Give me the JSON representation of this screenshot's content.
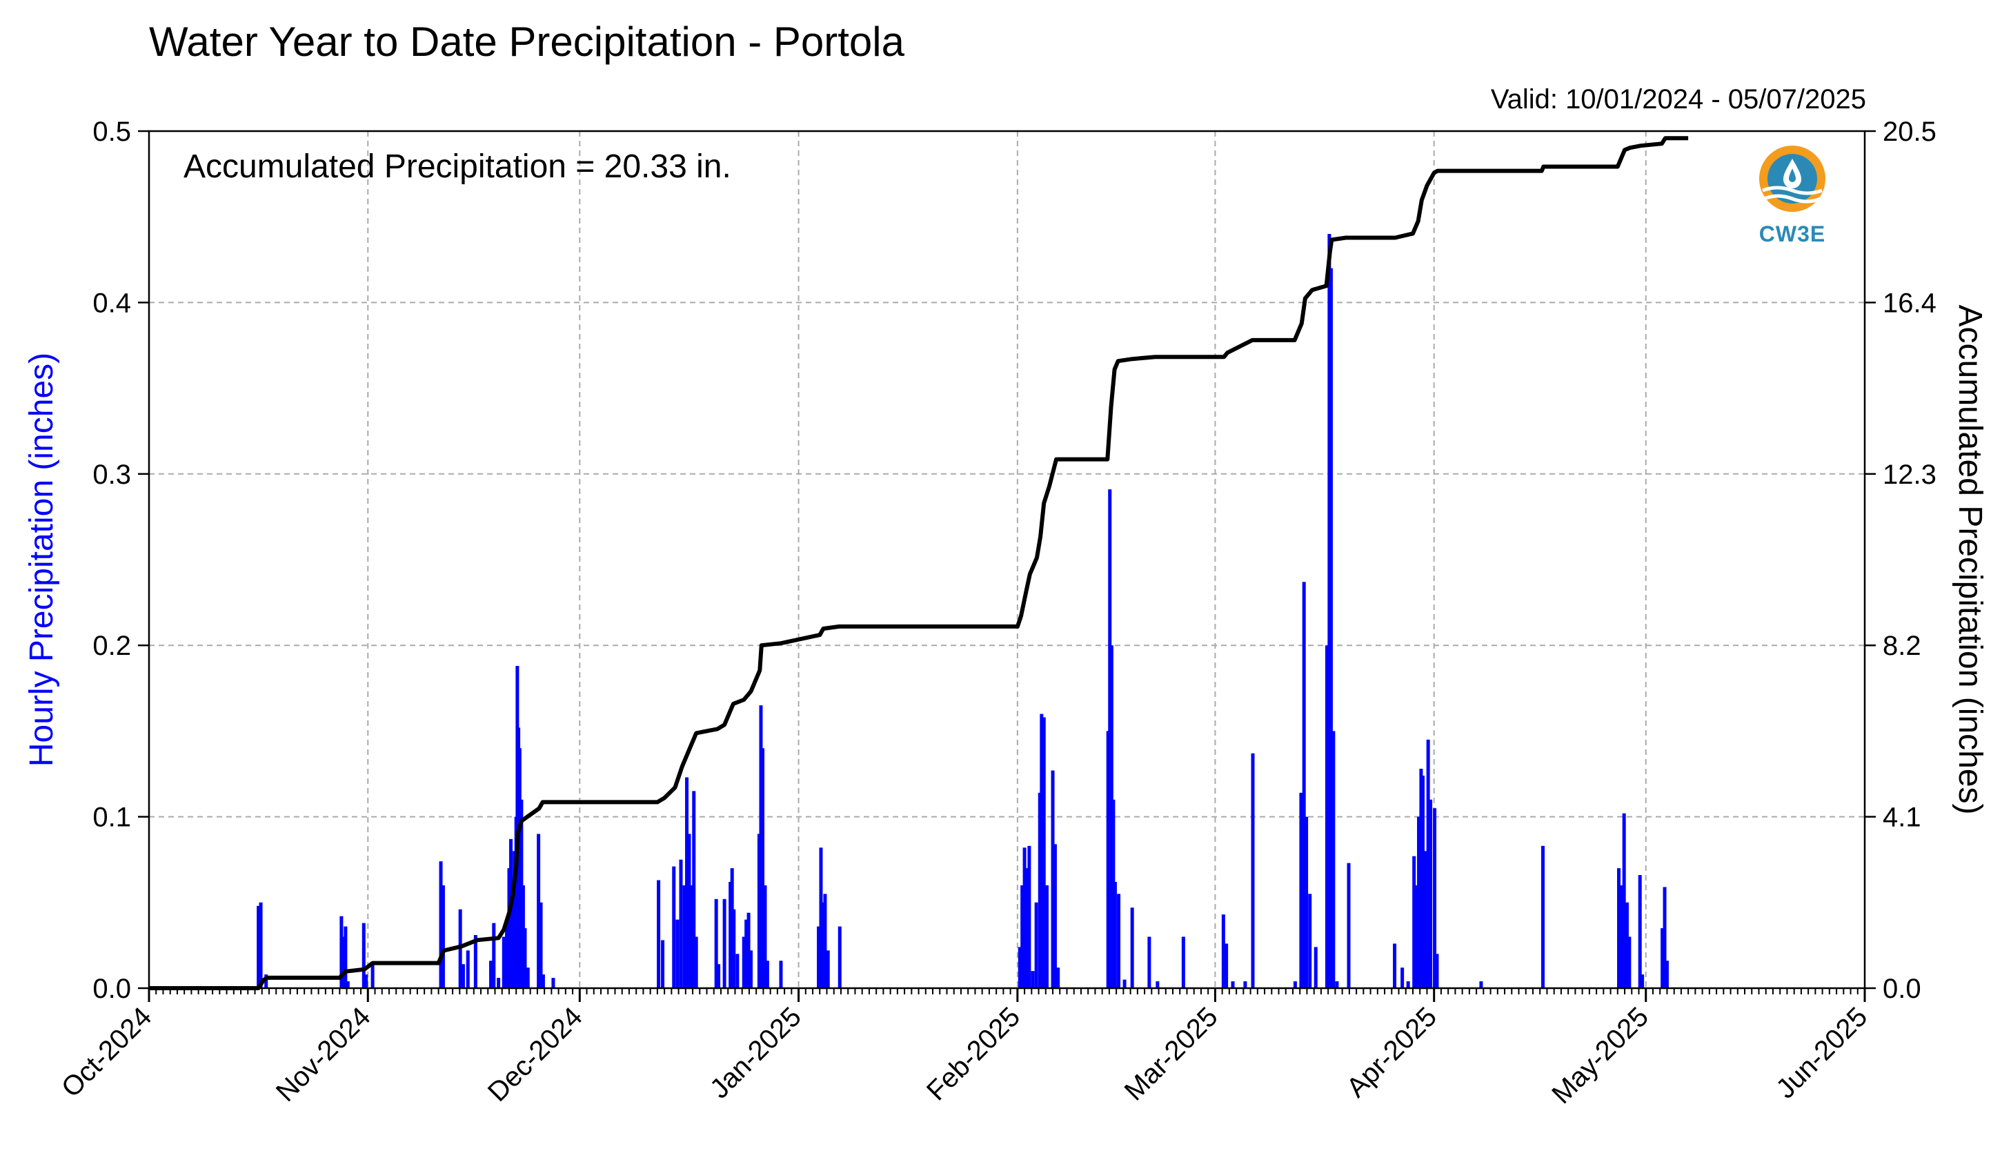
{
  "title": "Water Year to Date Precipitation - Portola",
  "valid": "Valid: 10/01/2024 - 05/07/2025",
  "annotation": "Accumulated Precipitation = 20.33 in.",
  "logo_text": "CW3E",
  "colors": {
    "bars": "#0000ff",
    "accumulation": "#000000",
    "ylabel_left": "#0000ff",
    "grid": "#aaaaaa",
    "logo_orange": "#f39c1e",
    "logo_blue": "#2a8ab5"
  },
  "chart_data": {
    "type": "bar",
    "title": "Water Year to Date Precipitation - Portola",
    "ylabel": "Hourly Precipitation (inches)",
    "ylabel_right": "Accumulated Precipitation (inches)",
    "xlim": [
      "2024-10-01",
      "2025-06-01"
    ],
    "ylim": [
      0,
      0.5
    ],
    "ylim_right": [
      0,
      20.5
    ],
    "y_ticks": [
      "0.0",
      "0.1",
      "0.2",
      "0.3",
      "0.4",
      "0.5"
    ],
    "y_ticks_right": [
      "0.0",
      "4.1",
      "8.2",
      "12.3",
      "16.4",
      "20.5"
    ],
    "x_ticks": [
      {
        "date": "2024-10-01",
        "label": "Oct-2024"
      },
      {
        "date": "2024-11-01",
        "label": "Nov-2024"
      },
      {
        "date": "2024-12-01",
        "label": "Dec-2024"
      },
      {
        "date": "2025-01-01",
        "label": "Jan-2025"
      },
      {
        "date": "2025-02-01",
        "label": "Feb-2025"
      },
      {
        "date": "2025-03-01",
        "label": "Mar-2025"
      },
      {
        "date": "2025-04-01",
        "label": "Apr-2025"
      },
      {
        "date": "2025-05-01",
        "label": "May-2025"
      },
      {
        "date": "2025-06-01",
        "label": "Jun-2025"
      }
    ],
    "grid": true,
    "series": [
      {
        "name": "Hourly Precipitation",
        "type": "bar",
        "points": [
          [
            "2024-10-16T12",
            0.048
          ],
          [
            "2024-10-16T20",
            0.05
          ],
          [
            "2024-10-17T14",
            0.008
          ],
          [
            "2024-10-28T06",
            0.042
          ],
          [
            "2024-10-28T12",
            0.03
          ],
          [
            "2024-10-28T20",
            0.036
          ],
          [
            "2024-10-29T04",
            0.004
          ],
          [
            "2024-10-31T10",
            0.038
          ],
          [
            "2024-10-31T18",
            0.008
          ],
          [
            "2024-11-01T16",
            0.014
          ],
          [
            "2024-11-11T08",
            0.074
          ],
          [
            "2024-11-11T16",
            0.06
          ],
          [
            "2024-11-14T02",
            0.046
          ],
          [
            "2024-11-14T12",
            0.014
          ],
          [
            "2024-11-15T04",
            0.022
          ],
          [
            "2024-11-16T06",
            0.031
          ],
          [
            "2024-11-18T10",
            0.016
          ],
          [
            "2024-11-18T20",
            0.038
          ],
          [
            "2024-11-19T12",
            0.006
          ],
          [
            "2024-11-20T06",
            0.03
          ],
          [
            "2024-11-20T16",
            0.04
          ],
          [
            "2024-11-21T00",
            0.07
          ],
          [
            "2024-11-21T06",
            0.087
          ],
          [
            "2024-11-21T12",
            0.06
          ],
          [
            "2024-11-21T18",
            0.08
          ],
          [
            "2024-11-22T00",
            0.1
          ],
          [
            "2024-11-22T04",
            0.188
          ],
          [
            "2024-11-22T08",
            0.152
          ],
          [
            "2024-11-22T12",
            0.14
          ],
          [
            "2024-11-22T18",
            0.11
          ],
          [
            "2024-11-23T00",
            0.06
          ],
          [
            "2024-11-23T06",
            0.035
          ],
          [
            "2024-11-23T16",
            0.012
          ],
          [
            "2024-11-25T04",
            0.09
          ],
          [
            "2024-11-25T12",
            0.05
          ],
          [
            "2024-11-25T20",
            0.008
          ],
          [
            "2024-11-27T06",
            0.006
          ],
          [
            "2024-12-12T04",
            0.063
          ],
          [
            "2024-12-12T18",
            0.028
          ],
          [
            "2024-12-14T08",
            0.071
          ],
          [
            "2024-12-14T20",
            0.04
          ],
          [
            "2024-12-15T08",
            0.075
          ],
          [
            "2024-12-15T20",
            0.06
          ],
          [
            "2024-12-16T04",
            0.123
          ],
          [
            "2024-12-16T12",
            0.09
          ],
          [
            "2024-12-16T20",
            0.06
          ],
          [
            "2024-12-17T04",
            0.115
          ],
          [
            "2024-12-17T12",
            0.03
          ],
          [
            "2024-12-20T08",
            0.052
          ],
          [
            "2024-12-20T16",
            0.014
          ],
          [
            "2024-12-21T12",
            0.052
          ],
          [
            "2024-12-22T08",
            0.062
          ],
          [
            "2024-12-22T14",
            0.07
          ],
          [
            "2024-12-22T20",
            0.046
          ],
          [
            "2024-12-23T08",
            0.02
          ],
          [
            "2024-12-24T06",
            0.03
          ],
          [
            "2024-12-24T14",
            0.04
          ],
          [
            "2024-12-24T22",
            0.044
          ],
          [
            "2024-12-25T06",
            0.022
          ],
          [
            "2024-12-26T10",
            0.09
          ],
          [
            "2024-12-26T16",
            0.165
          ],
          [
            "2024-12-26T22",
            0.14
          ],
          [
            "2024-12-27T06",
            0.06
          ],
          [
            "2024-12-27T14",
            0.016
          ],
          [
            "2024-12-29T12",
            0.016
          ],
          [
            "2025-01-03T20",
            0.036
          ],
          [
            "2025-01-04T04",
            0.082
          ],
          [
            "2025-01-04T10",
            0.05
          ],
          [
            "2025-01-04T18",
            0.055
          ],
          [
            "2025-01-05T04",
            0.022
          ],
          [
            "2025-01-06T20",
            0.036
          ],
          [
            "2025-02-01T08",
            0.024
          ],
          [
            "2025-02-01T16",
            0.06
          ],
          [
            "2025-02-02T00",
            0.082
          ],
          [
            "2025-02-02T08",
            0.07
          ],
          [
            "2025-02-02T16",
            0.083
          ],
          [
            "2025-02-03T04",
            0.01
          ],
          [
            "2025-02-03T16",
            0.05
          ],
          [
            "2025-02-04T04",
            0.114
          ],
          [
            "2025-02-04T10",
            0.16
          ],
          [
            "2025-02-04T18",
            0.158
          ],
          [
            "2025-02-05T04",
            0.06
          ],
          [
            "2025-02-06T00",
            0.127
          ],
          [
            "2025-02-06T08",
            0.084
          ],
          [
            "2025-02-06T18",
            0.012
          ],
          [
            "2025-02-13T20",
            0.15
          ],
          [
            "2025-02-14T02",
            0.291
          ],
          [
            "2025-02-14T08",
            0.2
          ],
          [
            "2025-02-14T14",
            0.11
          ],
          [
            "2025-02-14T20",
            0.062
          ],
          [
            "2025-02-15T08",
            0.055
          ],
          [
            "2025-02-16T04",
            0.005
          ],
          [
            "2025-02-17T06",
            0.047
          ],
          [
            "2025-02-19T16",
            0.03
          ],
          [
            "2025-02-20T20",
            0.004
          ],
          [
            "2025-02-24T12",
            0.03
          ],
          [
            "2025-03-02T04",
            0.043
          ],
          [
            "2025-03-02T14",
            0.026
          ],
          [
            "2025-03-03T12",
            0.004
          ],
          [
            "2025-03-05T06",
            0.004
          ],
          [
            "2025-03-06T08",
            0.137
          ],
          [
            "2025-03-12T08",
            0.004
          ],
          [
            "2025-03-13T04",
            0.114
          ],
          [
            "2025-03-13T14",
            0.237
          ],
          [
            "2025-03-13T22",
            0.1
          ],
          [
            "2025-03-14T10",
            0.055
          ],
          [
            "2025-03-15T06",
            0.024
          ],
          [
            "2025-03-16T20",
            0.2
          ],
          [
            "2025-03-17T04",
            0.44
          ],
          [
            "2025-03-17T10",
            0.42
          ],
          [
            "2025-03-17T18",
            0.15
          ],
          [
            "2025-03-18T06",
            0.004
          ],
          [
            "2025-03-19T22",
            0.073
          ],
          [
            "2025-03-26T10",
            0.026
          ],
          [
            "2025-03-27T12",
            0.012
          ],
          [
            "2025-03-28T08",
            0.004
          ],
          [
            "2025-03-29T04",
            0.077
          ],
          [
            "2025-03-29T12",
            0.06
          ],
          [
            "2025-03-29T20",
            0.1
          ],
          [
            "2025-03-30T04",
            0.128
          ],
          [
            "2025-03-30T10",
            0.124
          ],
          [
            "2025-03-30T18",
            0.08
          ],
          [
            "2025-03-31T04",
            0.145
          ],
          [
            "2025-03-31T12",
            0.11
          ],
          [
            "2025-04-01T02",
            0.105
          ],
          [
            "2025-04-01T10",
            0.02
          ],
          [
            "2025-04-07T16",
            0.004
          ],
          [
            "2025-04-16T10",
            0.083
          ],
          [
            "2025-04-27T04",
            0.07
          ],
          [
            "2025-04-27T12",
            0.06
          ],
          [
            "2025-04-27T22",
            0.102
          ],
          [
            "2025-04-28T08",
            0.05
          ],
          [
            "2025-04-28T16",
            0.03
          ],
          [
            "2025-04-30T04",
            0.066
          ],
          [
            "2025-04-30T12",
            0.008
          ],
          [
            "2025-05-03T08",
            0.035
          ],
          [
            "2025-05-03T16",
            0.059
          ],
          [
            "2025-05-04T00",
            0.016
          ]
        ]
      },
      {
        "name": "Accumulated Precipitation",
        "type": "step-line",
        "axis": "right",
        "points": [
          [
            "2024-10-01T00",
            0.0
          ],
          [
            "2024-10-16T12",
            0.0
          ],
          [
            "2024-10-17T06",
            0.2
          ],
          [
            "2024-10-17T18",
            0.25
          ],
          [
            "2024-10-28T00",
            0.25
          ],
          [
            "2024-10-28T20",
            0.4
          ],
          [
            "2024-10-31T12",
            0.45
          ],
          [
            "2024-11-01T16",
            0.6
          ],
          [
            "2024-11-11T00",
            0.6
          ],
          [
            "2024-11-11T18",
            0.9
          ],
          [
            "2024-11-14T06",
            1.0
          ],
          [
            "2024-11-16T12",
            1.15
          ],
          [
            "2024-11-19T12",
            1.2
          ],
          [
            "2024-11-20T06",
            1.4
          ],
          [
            "2024-11-21T00",
            1.8
          ],
          [
            "2024-11-21T12",
            2.2
          ],
          [
            "2024-11-22T00",
            2.9
          ],
          [
            "2024-11-22T06",
            3.7
          ],
          [
            "2024-11-22T18",
            4.0
          ],
          [
            "2024-11-25T06",
            4.3
          ],
          [
            "2024-11-25T18",
            4.45
          ],
          [
            "2024-12-12T00",
            4.45
          ],
          [
            "2024-12-13T00",
            4.55
          ],
          [
            "2024-12-14T12",
            4.8
          ],
          [
            "2024-12-15T12",
            5.3
          ],
          [
            "2024-12-16T06",
            5.6
          ],
          [
            "2024-12-16T18",
            5.8
          ],
          [
            "2024-12-17T12",
            6.1
          ],
          [
            "2024-12-20T12",
            6.2
          ],
          [
            "2024-12-21T12",
            6.3
          ],
          [
            "2024-12-22T18",
            6.8
          ],
          [
            "2024-12-24T06",
            6.9
          ],
          [
            "2024-12-25T06",
            7.1
          ],
          [
            "2024-12-26T12",
            7.6
          ],
          [
            "2024-12-26T18",
            8.2
          ],
          [
            "2024-12-29T12",
            8.25
          ],
          [
            "2025-01-04T00",
            8.45
          ],
          [
            "2025-01-04T12",
            8.6
          ],
          [
            "2025-01-06T18",
            8.65
          ],
          [
            "2025-02-01T00",
            8.65
          ],
          [
            "2025-02-01T12",
            8.9
          ],
          [
            "2025-02-02T06",
            9.5
          ],
          [
            "2025-02-02T18",
            9.9
          ],
          [
            "2025-02-03T18",
            10.3
          ],
          [
            "2025-02-04T06",
            10.8
          ],
          [
            "2025-02-04T18",
            11.6
          ],
          [
            "2025-02-05T12",
            12.0
          ],
          [
            "2025-02-06T12",
            12.65
          ],
          [
            "2025-02-13T18",
            12.65
          ],
          [
            "2025-02-14T06",
            13.9
          ],
          [
            "2025-02-14T18",
            14.8
          ],
          [
            "2025-02-15T06",
            15.0
          ],
          [
            "2025-02-17T06",
            15.05
          ],
          [
            "2025-02-20T12",
            15.1
          ],
          [
            "2025-03-02T06",
            15.1
          ],
          [
            "2025-03-02T18",
            15.2
          ],
          [
            "2025-03-06T06",
            15.5
          ],
          [
            "2025-03-12T06",
            15.5
          ],
          [
            "2025-03-13T06",
            15.9
          ],
          [
            "2025-03-13T18",
            16.5
          ],
          [
            "2025-03-14T18",
            16.7
          ],
          [
            "2025-03-16T18",
            16.8
          ],
          [
            "2025-03-17T06",
            17.6
          ],
          [
            "2025-03-17T12",
            17.9
          ],
          [
            "2025-03-19T12",
            17.95
          ],
          [
            "2025-03-26T12",
            17.95
          ],
          [
            "2025-03-29T00",
            18.05
          ],
          [
            "2025-03-29T18",
            18.35
          ],
          [
            "2025-03-30T06",
            18.85
          ],
          [
            "2025-03-31T00",
            19.2
          ],
          [
            "2025-04-01T00",
            19.5
          ],
          [
            "2025-04-01T12",
            19.55
          ],
          [
            "2025-04-07T12",
            19.55
          ],
          [
            "2025-04-16T06",
            19.55
          ],
          [
            "2025-04-16T12",
            19.65
          ],
          [
            "2025-04-27T00",
            19.65
          ],
          [
            "2025-04-27T12",
            19.85
          ],
          [
            "2025-04-28T00",
            20.05
          ],
          [
            "2025-04-28T18",
            20.1
          ],
          [
            "2025-04-30T06",
            20.15
          ],
          [
            "2025-05-03T06",
            20.2
          ],
          [
            "2025-05-03T18",
            20.33
          ],
          [
            "2025-05-07T00",
            20.33
          ]
        ]
      }
    ]
  }
}
